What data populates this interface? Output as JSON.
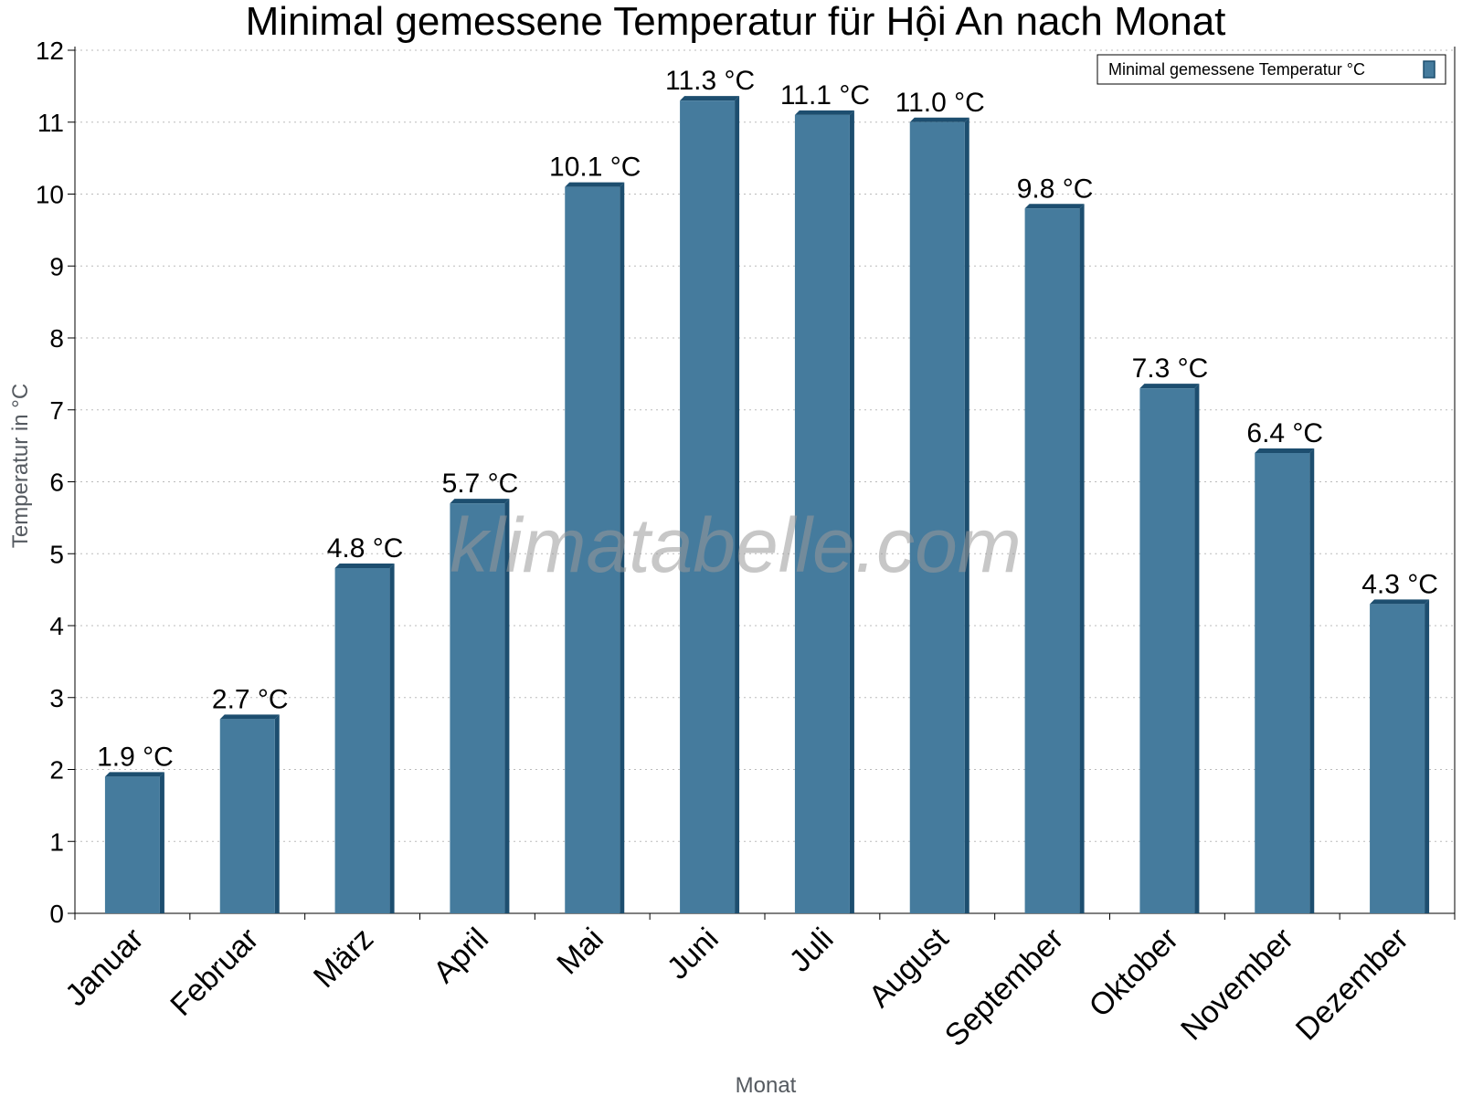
{
  "chart_data": {
    "type": "bar",
    "title": "Minimal gemessene Temperatur für Hội An nach Monat",
    "xlabel": "Monat",
    "ylabel": "Temperatur in °C",
    "categories": [
      "Januar",
      "Februar",
      "März",
      "April",
      "Mai",
      "Juni",
      "Juli",
      "August",
      "September",
      "Oktober",
      "November",
      "Dezember"
    ],
    "series": [
      {
        "name": "Minimal gemessene Temperatur °C",
        "values": [
          1.9,
          2.7,
          4.8,
          5.7,
          10.1,
          11.3,
          11.1,
          11.0,
          9.8,
          7.3,
          6.4,
          4.3
        ],
        "labels": [
          "1.9 °C",
          "2.7 °C",
          "4.8 °C",
          "5.7 °C",
          "10.1 °C",
          "11.3 °C",
          "11.1 °C",
          "11.0 °C",
          "9.8 °C",
          "7.3 °C",
          "6.4 °C",
          "4.3 °C"
        ],
        "color": "#457b9d",
        "edge_color": "#1d4e6f"
      }
    ],
    "ylim": [
      0,
      12
    ],
    "yticks": [
      "0",
      "1",
      "2",
      "3",
      "4",
      "5",
      "6",
      "7",
      "8",
      "9",
      "10",
      "11",
      "12"
    ],
    "grid": true,
    "legend_position": "top-right",
    "watermark": "klimatabelle.com"
  }
}
